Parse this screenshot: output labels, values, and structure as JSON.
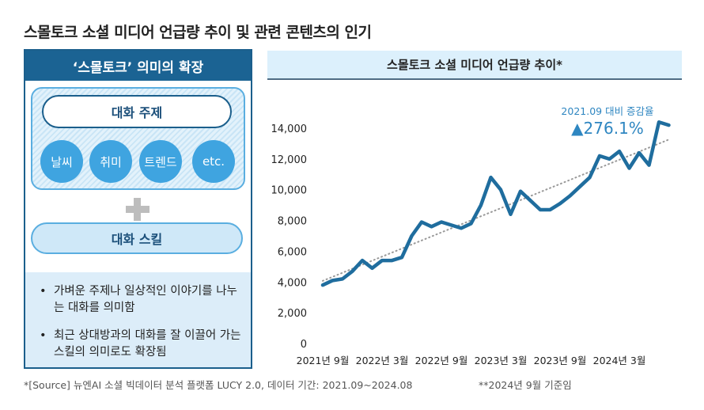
{
  "title": "스몰토크 소셜 미디어 언급량 추이 및 관련 콘텐츠의 인기",
  "left_panel": {
    "header": "‘스몰토크’ 의미의 확장",
    "topic_label": "대화 주제",
    "topics": [
      "날씨",
      "취미",
      "트렌드",
      "etc."
    ],
    "skill_label": "대화 스킬",
    "bullets": [
      "가벼운 주제나 일상적인 이야기를 나누는 대화를 의미함",
      "최근 상대방과의 대화를 잘 이끌어 가는 스킬의 의미로도 확장됨"
    ]
  },
  "chart_data": {
    "type": "line",
    "title": "스몰토크 소셜 미디어 언급량 추이*",
    "annotation_label": "2021.09 대비 증감율",
    "annotation_value": "▲276.1%",
    "categories": [
      "2021년 9월",
      null,
      null,
      null,
      null,
      null,
      "2022년 3월",
      null,
      null,
      null,
      null,
      null,
      "2022년 9월",
      null,
      null,
      null,
      null,
      null,
      "2023년 3월",
      null,
      null,
      null,
      null,
      null,
      "2023년 9월",
      null,
      null,
      null,
      null,
      null,
      "2024년 3월",
      null,
      null,
      null,
      null,
      null
    ],
    "series": [
      {
        "name": "언급량",
        "color": "#1f6d9e",
        "values": [
          3800,
          4100,
          4200,
          4700,
          5400,
          4900,
          5400,
          5400,
          5600,
          7000,
          7900,
          7600,
          7900,
          7700,
          7500,
          7800,
          9000,
          10800,
          10000,
          8400,
          9900,
          9300,
          8700,
          8700,
          9100,
          9600,
          10200,
          10800,
          12200,
          12000,
          12500,
          11400,
          12400,
          11600,
          14400,
          14200
        ]
      }
    ],
    "trendline": true,
    "ylim": [
      0,
      14000
    ],
    "yticks": [
      0,
      {
        "value": 2000,
        "label": "2,000"
      },
      {
        "value": 4000,
        "label": "4,000"
      },
      {
        "value": 6000,
        "label": "6,000"
      },
      {
        "value": 8000,
        "label": "8,000"
      },
      {
        "value": 10000,
        "label": "10,000"
      },
      {
        "value": 12000,
        "label": "12,000"
      },
      {
        "value": 14000,
        "label": "14,000"
      }
    ]
  },
  "footnotes": [
    "*[Source] 뉴엔AI 소셜 빅데이터 분석 플랫폼 LUCY 2.0, 데이터 기간: 2021.09~2024.08",
    "**2024년 9월 기준임"
  ]
}
